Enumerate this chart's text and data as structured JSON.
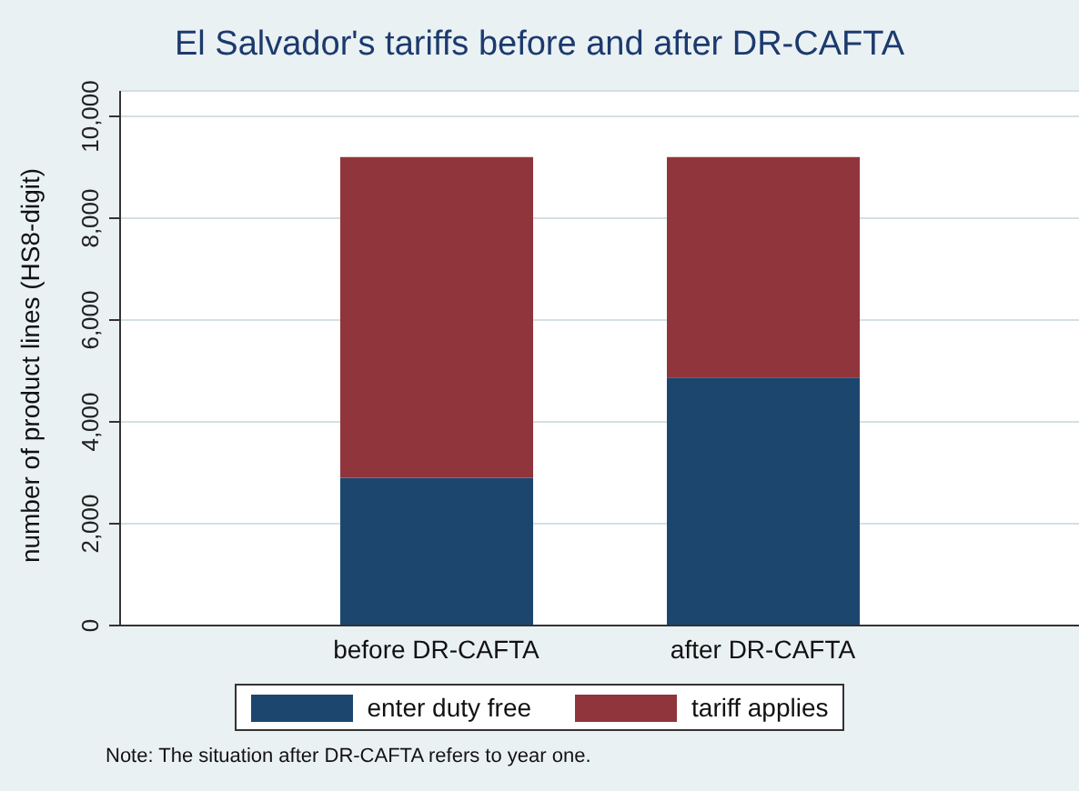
{
  "chart_data": {
    "type": "bar",
    "title": "El Salvador's tariffs before and after DR-CAFTA",
    "ylabel": "number of product lines (HS8-digit)",
    "categories": [
      "before DR-CAFTA",
      "after DR-CAFTA"
    ],
    "stacked": true,
    "series": [
      {
        "name": "enter duty free",
        "color": "#1c466e",
        "values": [
          2900,
          4870
        ]
      },
      {
        "name": "tariff applies",
        "color": "#90353b",
        "values": [
          6300,
          4330
        ]
      }
    ],
    "ylim": [
      0,
      10500
    ],
    "yticks": [
      0,
      {
        "value": 2000,
        "label": "2,000"
      },
      {
        "value": 4000,
        "label": "4,000"
      },
      {
        "value": 6000,
        "label": "6,000"
      },
      {
        "value": 8000,
        "label": "8,000"
      },
      {
        "value": 10000,
        "label": "10,000"
      }
    ],
    "grid": "y",
    "legend": "bottom",
    "annotations": [
      "Note: The situation after DR-CAFTA refers to year one."
    ]
  }
}
